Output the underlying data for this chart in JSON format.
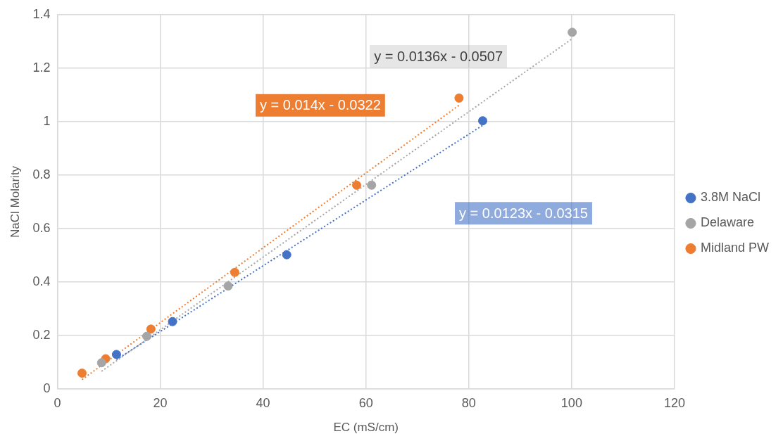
{
  "chart_data": {
    "type": "scatter",
    "xlabel": "EC (mS/cm)",
    "ylabel": "NaCl Molarity",
    "xlim": [
      0,
      120
    ],
    "xticks": [
      0,
      20,
      40,
      60,
      80,
      100,
      120
    ],
    "ylim": [
      0,
      1.4
    ],
    "yticks": [
      0,
      0.2,
      0.4,
      0.6,
      0.8,
      1,
      1.2,
      1.4
    ],
    "grid": true,
    "legend": "right",
    "marker": "circle",
    "series": [
      {
        "name": "3.8M NaCl",
        "color": "#4472c4",
        "x": [
          11.5,
          22.4,
          44.6,
          82.7
        ],
        "values": [
          0.129,
          0.252,
          0.502,
          1.003
        ]
      },
      {
        "name": "Delaware",
        "color": "#a5a5a5",
        "x": [
          8.6,
          17.4,
          33.2,
          61.1,
          100.1
        ],
        "values": [
          0.098,
          0.197,
          0.385,
          0.762,
          1.334
        ]
      },
      {
        "name": "Midland PW",
        "color": "#ed7d31",
        "x": [
          4.8,
          9.4,
          18.2,
          34.5,
          58.2,
          78.1
        ],
        "values": [
          0.059,
          0.113,
          0.224,
          0.436,
          0.762,
          1.088
        ]
      },
      {
        "type": "line",
        "color": "#4472c4",
        "x": [
          11.5,
          82.7
        ],
        "values": [
          0.11,
          0.986
        ],
        "line_style": "dotted",
        "marker": "none"
      },
      {
        "type": "line",
        "color": "#a5a5a5",
        "x": [
          8.6,
          100.1
        ],
        "values": [
          0.066,
          1.31
        ],
        "line_style": "dotted",
        "marker": "none"
      },
      {
        "type": "line",
        "color": "#ed7d31",
        "x": [
          4.8,
          78.1
        ],
        "values": [
          0.035,
          1.061
        ],
        "line_style": "dotted",
        "marker": "none"
      }
    ],
    "annotations": [
      "y = 0.0123x - 0.0315",
      "y = 0.0136x - 0.0507",
      "y = 0.014x - 0.0322"
    ]
  }
}
